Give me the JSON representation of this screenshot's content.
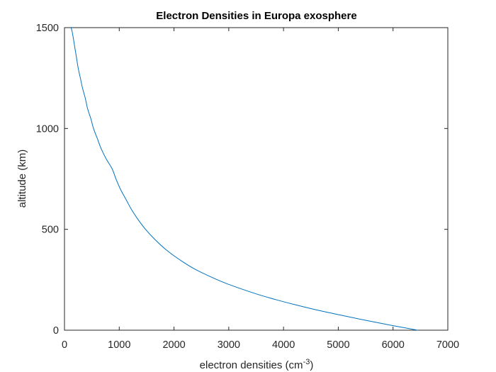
{
  "chart_data": {
    "type": "line",
    "title": "Electron Densities in Europa exosphere",
    "xlabel": "electron densities (cm",
    "xlabel_superscript": "-3",
    "xlabel_suffix": ")",
    "ylabel": "altitude (km)",
    "xlim": [
      0,
      7000
    ],
    "ylim": [
      0,
      1500
    ],
    "xticks": [
      0,
      1000,
      2000,
      3000,
      4000,
      5000,
      6000,
      7000
    ],
    "yticks": [
      0,
      500,
      1000,
      1500
    ],
    "grid": false,
    "legend": "none",
    "series": [
      {
        "color": "#0072BD",
        "x": [
          6450,
          5950,
          5480,
          5040,
          4610,
          4230,
          3880,
          3560,
          3280,
          3020,
          2790,
          2400,
          2100,
          1850,
          1650,
          1480,
          1340,
          1220,
          1120,
          1020,
          940,
          870,
          760,
          670,
          600,
          530,
          480,
          420,
          380,
          330,
          290,
          250,
          220,
          190,
          160,
          140,
          120,
          110
        ],
        "y": [
          0,
          25,
          50,
          75,
          100,
          125,
          150,
          175,
          200,
          225,
          250,
          300,
          350,
          400,
          450,
          500,
          550,
          600,
          650,
          700,
          750,
          800,
          850,
          900,
          950,
          1000,
          1050,
          1100,
          1150,
          1200,
          1250,
          1300,
          1350,
          1400,
          1450,
          1480,
          1500,
          1500
        ]
      }
    ]
  }
}
